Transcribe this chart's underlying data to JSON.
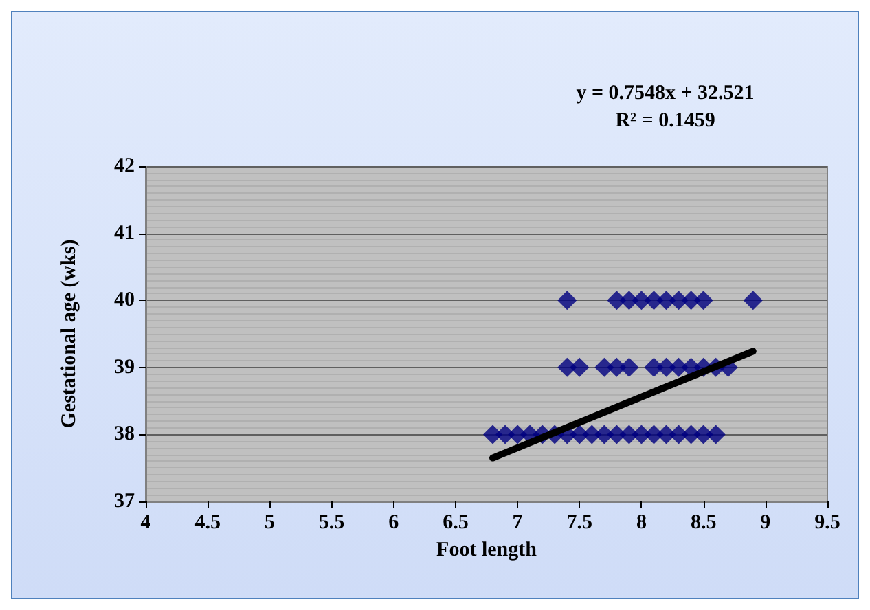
{
  "chart_data": {
    "type": "scatter",
    "xlabel": "Foot length",
    "ylabel": "Gestational age (wks)",
    "annotations": [
      "y = 0.7548x + 32.521",
      "R² = 0.1459"
    ],
    "xlim": [
      4,
      9.5
    ],
    "xticks": [
      4,
      4.5,
      5,
      5.5,
      6,
      6.5,
      7,
      7.5,
      8,
      8.5,
      9,
      9.5
    ],
    "ylim": [
      37,
      42
    ],
    "yticks": [
      37,
      38,
      39,
      40,
      41,
      42
    ],
    "grid": "y",
    "marker": "diamond",
    "series": [
      {
        "color": "#000080",
        "x": [
          6.8,
          6.9,
          7.0,
          7.1,
          7.2,
          7.3,
          7.4,
          7.5,
          7.6,
          7.7,
          7.8,
          7.9,
          8.0,
          8.1,
          8.2,
          8.3,
          8.4,
          8.5,
          8.6,
          7.4,
          7.5,
          7.7,
          7.8,
          7.9,
          8.1,
          8.2,
          8.3,
          8.4,
          8.5,
          8.6,
          8.7,
          7.4,
          7.8,
          7.9,
          8.0,
          8.1,
          8.2,
          8.3,
          8.4,
          8.5,
          8.9
        ],
        "values": [
          38,
          38,
          38,
          38,
          38,
          38,
          38,
          38,
          38,
          38,
          38,
          38,
          38,
          38,
          38,
          38,
          38,
          38,
          38,
          39,
          39,
          39,
          39,
          39,
          39,
          39,
          39,
          39,
          39,
          39,
          39,
          40,
          40,
          40,
          40,
          40,
          40,
          40,
          40,
          40,
          40
        ]
      },
      {
        "type": "line",
        "color": "#000000",
        "marker": "none",
        "line_style": "solid",
        "x": [
          6.8,
          8.9
        ],
        "values": [
          37.65,
          39.24
        ]
      }
    ]
  }
}
